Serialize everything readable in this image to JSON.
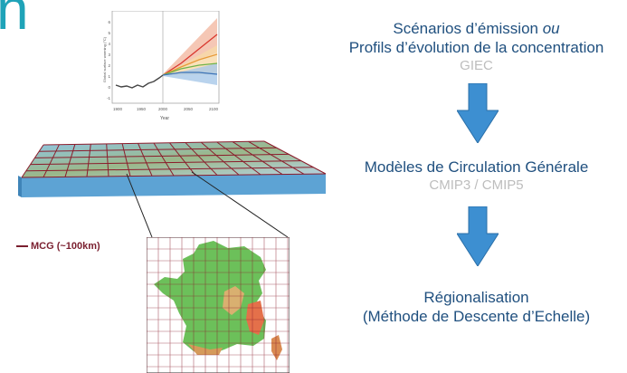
{
  "corner_text": "n",
  "steps": [
    {
      "line1": "Scénarios d’émission ",
      "line1_italic": "ou",
      "line2": "Profils d’évolution de la concentration",
      "source": "GIEC"
    },
    {
      "line1": "Modèles de Circulation Générale",
      "source": "CMIP3 / CMIP5"
    },
    {
      "line1": "Régionalisation",
      "line2": "(Méthode de Descente d’Echelle)"
    }
  ],
  "mcg_label": "MCG (~100km)",
  "inset_chart": {
    "ylabel": "Global surface warming (°C)",
    "xlabel": "Year",
    "xticks": [
      "1900",
      "1950",
      "2000",
      "2050",
      "2100"
    ],
    "yticks": [
      "-1",
      "0",
      "1",
      "2",
      "3",
      "4",
      "5",
      "6"
    ]
  },
  "colors": {
    "arrow": "#3d8fd1",
    "title": "#20507f",
    "source": "#bdbdbd",
    "grid_line": "#8b1c2b",
    "corner": "#1fa3b8"
  }
}
